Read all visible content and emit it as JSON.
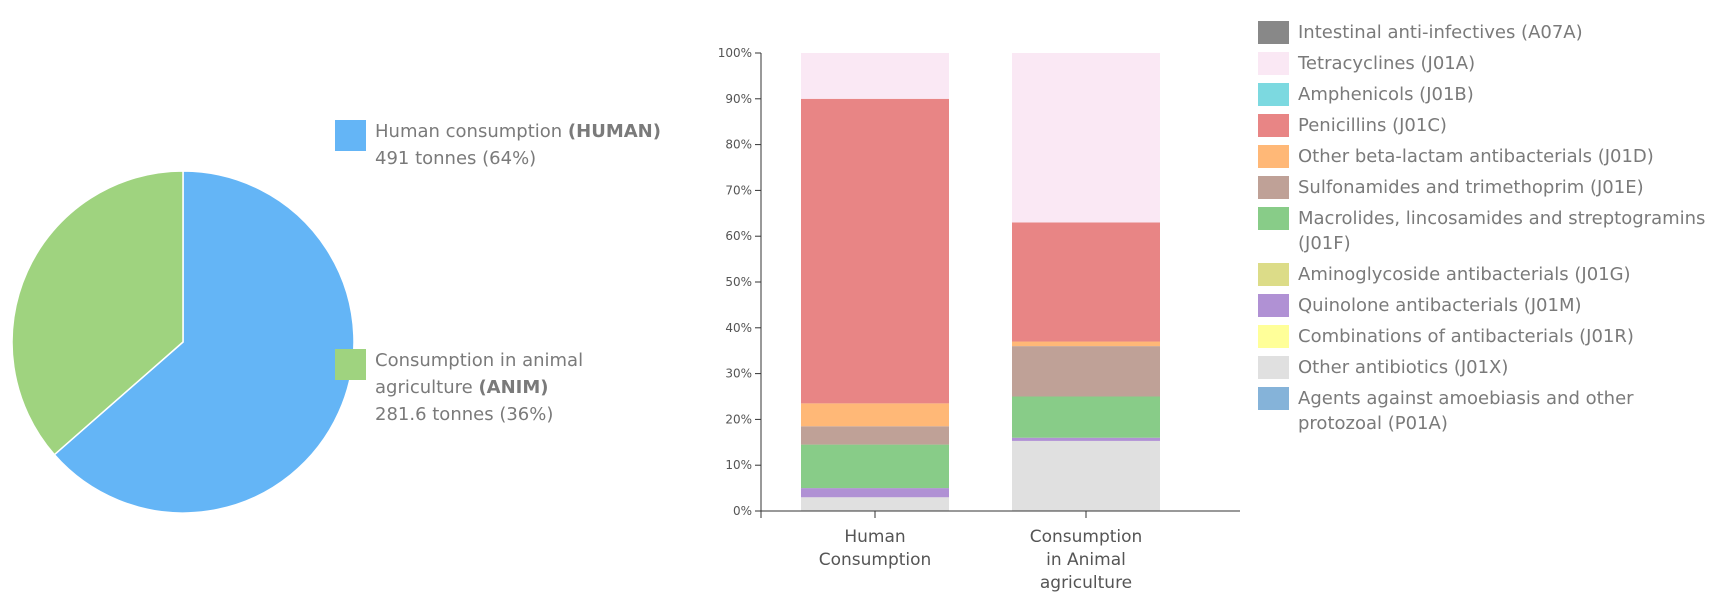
{
  "pie": {
    "items": [
      {
        "label": "Human consumption",
        "code": "(HUMAN)",
        "value_text": "491 tonnes (64%)",
        "value": 491,
        "color": "#64b5f6"
      },
      {
        "label": "Consumption in animal agriculture",
        "code": "(ANIM)",
        "value_text": "281.6 tonnes (36%)",
        "value": 281.6,
        "color": "#9fd37f"
      }
    ]
  },
  "chart_data": [
    {
      "type": "pie",
      "categories": [
        "Human consumption (HUMAN)",
        "Consumption in animal agriculture (ANIM)"
      ],
      "values": [
        491,
        281.6
      ],
      "unit": "tonnes",
      "percentages": [
        64,
        36
      ]
    },
    {
      "type": "bar",
      "stacked": true,
      "categories": [
        "Human Consumption",
        "Consumption in Animal agriculture"
      ],
      "ylim": [
        0,
        100
      ],
      "yticks": [
        "0%",
        "10%",
        "20%",
        "30%",
        "40%",
        "50%",
        "60%",
        "70%",
        "80%",
        "90%",
        "100%"
      ],
      "series": [
        {
          "name": "Other antibiotics (J01X)",
          "color": "#e0e0e0",
          "values": [
            3,
            15.3
          ]
        },
        {
          "name": "Quinolone antibacterials (J01M)",
          "color": "#b091d4",
          "values": [
            2,
            0.7
          ]
        },
        {
          "name": "Macrolides, lincosamides and streptogramins (J01F)",
          "color": "#88cc88",
          "values": [
            9.5,
            9
          ]
        },
        {
          "name": "Sulfonamides and trimethoprim (J01E)",
          "color": "#bfa197",
          "values": [
            4,
            11
          ]
        },
        {
          "name": "Other beta-lactam antibacterials (J01D)",
          "color": "#ffb877",
          "values": [
            5,
            1
          ]
        },
        {
          "name": "Penicillins (J01C)",
          "color": "#e88585",
          "values": [
            66.5,
            26
          ]
        },
        {
          "name": "Tetracyclines (J01A)",
          "color": "#fae8f4",
          "values": [
            10,
            37
          ]
        }
      ],
      "legend_position": "right"
    }
  ],
  "legend": [
    {
      "label": "Intestinal anti-infectives (A07A)",
      "color": "#888888"
    },
    {
      "label": "Tetracyclines (J01A)",
      "color": "#fae8f4"
    },
    {
      "label": "Amphenicols (J01B)",
      "color": "#7cd9e0"
    },
    {
      "label": "Penicillins (J01C)",
      "color": "#e88585"
    },
    {
      "label": "Other beta-lactam antibacterials (J01D)",
      "color": "#ffb877"
    },
    {
      "label": "Sulfonamides and trimethoprim (J01E)",
      "color": "#bfa197"
    },
    {
      "label": "Macrolides, lincosamides and streptogramins (J01F)",
      "color": "#88cc88"
    },
    {
      "label": "Aminoglycoside antibacterials (J01G)",
      "color": "#dcdc88"
    },
    {
      "label": "Quinolone antibacterials (J01M)",
      "color": "#b091d4"
    },
    {
      "label": "Combinations of antibacterials (J01R)",
      "color": "#ffff99"
    },
    {
      "label": "Other antibiotics (J01X)",
      "color": "#e0e0e0"
    },
    {
      "label": "Agents against amoebiasis and other protozoal (P01A)",
      "color": "#85b3d9"
    }
  ],
  "bar_category_lines": [
    [
      "Human",
      "Consumption"
    ],
    [
      "Consumption",
      "in Animal",
      "agriculture"
    ]
  ]
}
